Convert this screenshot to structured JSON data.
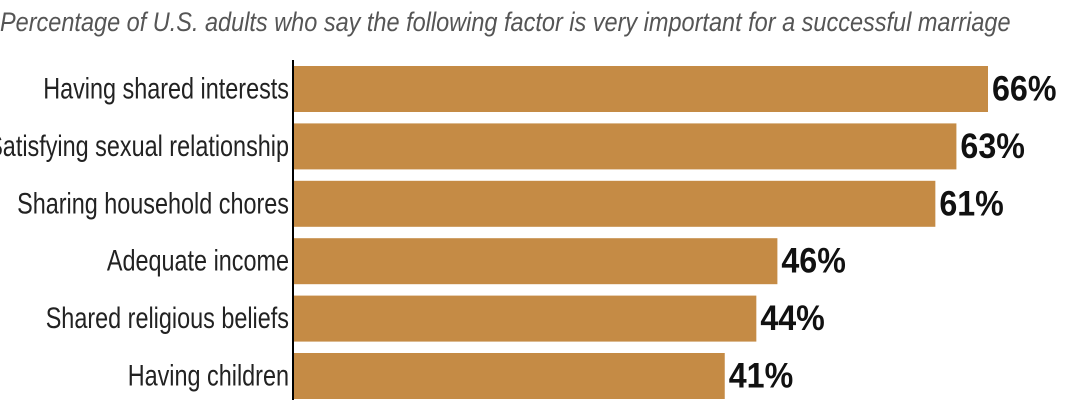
{
  "colors": {
    "bar": "#c58b45",
    "axis": "#000000",
    "subtitle": "#555555"
  },
  "chart_data": {
    "type": "bar",
    "orientation": "horizontal",
    "title": "",
    "subtitle": "Percentage of U.S. adults who say the following factor is very important for a successful marriage",
    "xlabel": "",
    "ylabel": "",
    "categories": [
      "Having shared interests",
      "Satisfying sexual relationship",
      "Sharing household chores",
      "Adequate income",
      "Shared religious beliefs",
      "Having children"
    ],
    "values": [
      66,
      63,
      61,
      46,
      44,
      41
    ],
    "value_labels": [
      "66%",
      "63%",
      "61%",
      "46%",
      "44%",
      "41%"
    ],
    "xlim": [
      0,
      66
    ],
    "grid": false,
    "legend": "none"
  }
}
